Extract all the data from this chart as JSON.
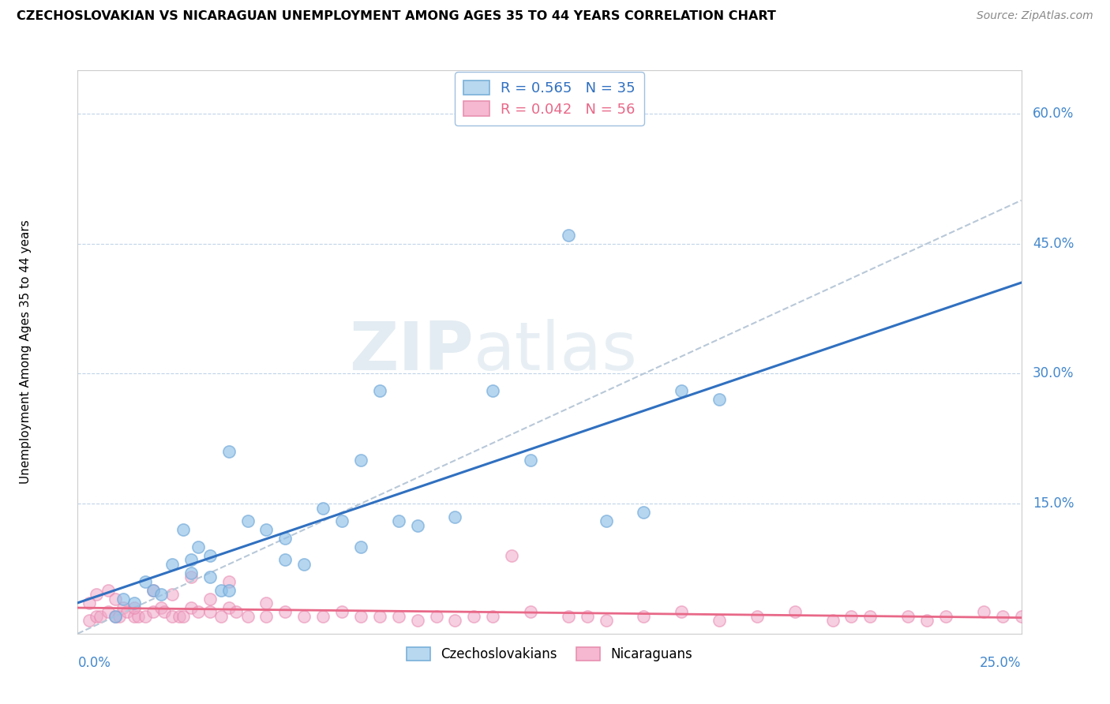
{
  "title": "CZECHOSLOVAKIAN VS NICARAGUAN UNEMPLOYMENT AMONG AGES 35 TO 44 YEARS CORRELATION CHART",
  "source": "Source: ZipAtlas.com",
  "xlabel_bottom_left": "0.0%",
  "xlabel_bottom_right": "25.0%",
  "ylabel": "Unemployment Among Ages 35 to 44 years",
  "ytick_labels": [
    "15.0%",
    "30.0%",
    "45.0%",
    "60.0%"
  ],
  "ytick_values": [
    15.0,
    30.0,
    45.0,
    60.0
  ],
  "xmin": 0.0,
  "xmax": 25.0,
  "ymin": 0.0,
  "ymax": 65.0,
  "legend1_label": "R = 0.565   N = 35",
  "legend2_label": "R = 0.042   N = 56",
  "legend1_color": "#b8d8f0",
  "legend2_color": "#f5b8d0",
  "watermark_zip": "ZIP",
  "watermark_atlas": "atlas",
  "blue_scatter_color": "#90c0e8",
  "blue_scatter_edge": "#70a8d8",
  "pink_scatter_color": "#f0a8c8",
  "pink_scatter_edge": "#e888b0",
  "blue_line_color": "#3070c0",
  "pink_line_color": "#e86888",
  "gray_dash_color": "#b8c8d8",
  "czecho_x": [
    1.0,
    1.5,
    2.0,
    2.5,
    2.8,
    3.0,
    3.2,
    3.5,
    3.8,
    4.0,
    4.5,
    5.0,
    5.5,
    6.0,
    6.5,
    7.0,
    7.5,
    8.0,
    9.0,
    10.0,
    11.0,
    12.0,
    13.0,
    14.0,
    15.0,
    16.0,
    17.0
  ],
  "czecho_y": [
    2.0,
    3.5,
    5.0,
    8.0,
    12.0,
    7.0,
    10.0,
    9.0,
    5.0,
    21.0,
    13.0,
    12.0,
    8.5,
    8.0,
    14.5,
    13.0,
    20.0,
    28.0,
    12.5,
    13.5,
    28.0,
    20.0,
    46.0,
    13.0,
    14.0,
    28.0,
    27.0
  ],
  "czecho_x2": [
    1.2,
    1.8,
    2.2,
    3.0,
    3.5,
    4.0,
    5.5,
    7.5,
    8.5
  ],
  "czecho_y2": [
    4.0,
    6.0,
    4.5,
    8.5,
    6.5,
    5.0,
    11.0,
    10.0,
    13.0
  ],
  "nica_x": [
    0.3,
    0.5,
    0.6,
    0.8,
    1.0,
    1.1,
    1.2,
    1.3,
    1.5,
    1.6,
    1.8,
    2.0,
    2.2,
    2.3,
    2.5,
    2.7,
    2.8,
    3.0,
    3.2,
    3.5,
    3.8,
    4.0,
    4.2,
    4.5,
    5.0,
    5.5,
    6.0,
    6.5,
    7.0,
    7.5,
    8.0,
    8.5,
    9.0,
    9.5,
    10.0,
    10.5,
    11.0,
    12.0,
    13.0,
    14.0,
    15.0,
    16.0,
    17.0,
    18.0,
    19.0,
    20.0,
    20.5,
    21.0,
    22.0,
    22.5,
    23.0,
    24.0,
    24.5,
    25.0,
    11.5,
    13.5
  ],
  "nica_y": [
    1.5,
    2.0,
    2.0,
    2.5,
    2.0,
    2.0,
    3.0,
    2.5,
    2.0,
    2.0,
    2.0,
    2.5,
    3.0,
    2.5,
    2.0,
    2.0,
    2.0,
    3.0,
    2.5,
    2.5,
    2.0,
    3.0,
    2.5,
    2.0,
    2.0,
    2.5,
    2.0,
    2.0,
    2.5,
    2.0,
    2.0,
    2.0,
    1.5,
    2.0,
    1.5,
    2.0,
    2.0,
    2.5,
    2.0,
    1.5,
    2.0,
    2.5,
    1.5,
    2.0,
    2.5,
    1.5,
    2.0,
    2.0,
    2.0,
    1.5,
    2.0,
    2.5,
    2.0,
    2.0,
    9.0,
    2.0
  ],
  "nica_extra_x": [
    0.3,
    0.5,
    0.8,
    1.0,
    1.5,
    2.0,
    2.5,
    3.0,
    3.5,
    4.0,
    5.0
  ],
  "nica_extra_y": [
    3.5,
    4.5,
    5.0,
    4.0,
    3.0,
    5.0,
    4.5,
    6.5,
    4.0,
    6.0,
    3.5
  ]
}
